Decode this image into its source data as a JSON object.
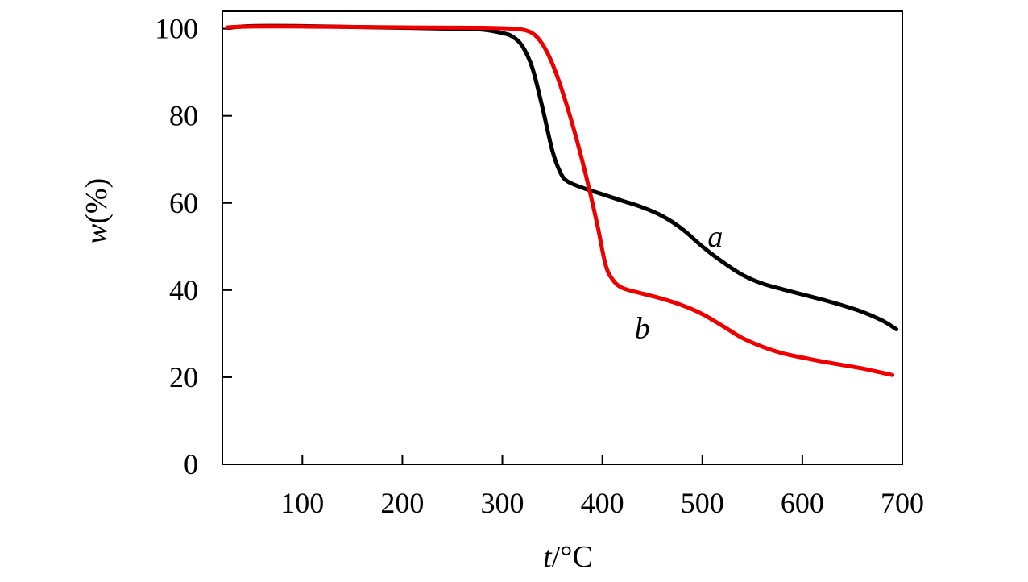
{
  "chart_data": {
    "type": "line",
    "xlabel_var": "t",
    "xlabel_unit": "/°C",
    "ylabel_var": "w",
    "ylabel_unit": "(%)",
    "xlim": [
      20,
      700
    ],
    "ylim": [
      0,
      104
    ],
    "xticks": [
      100,
      200,
      300,
      400,
      500,
      600,
      700
    ],
    "yticks": [
      0,
      20,
      40,
      60,
      80,
      100
    ],
    "grid": false,
    "series": [
      {
        "name": "a",
        "color": "#000000",
        "label_at": [
          513,
          50
        ],
        "points": [
          [
            25,
            100.2
          ],
          [
            50,
            100.6
          ],
          [
            100,
            100.6
          ],
          [
            150,
            100.4
          ],
          [
            200,
            100.2
          ],
          [
            250,
            100.0
          ],
          [
            280,
            99.8
          ],
          [
            300,
            99.0
          ],
          [
            310,
            98.2
          ],
          [
            320,
            96.0
          ],
          [
            330,
            91.0
          ],
          [
            340,
            82.0
          ],
          [
            350,
            72.0
          ],
          [
            358,
            67.0
          ],
          [
            365,
            65.0
          ],
          [
            380,
            63.5
          ],
          [
            400,
            62.0
          ],
          [
            420,
            60.5
          ],
          [
            440,
            59.0
          ],
          [
            460,
            57.0
          ],
          [
            480,
            54.0
          ],
          [
            500,
            50.0
          ],
          [
            520,
            46.5
          ],
          [
            540,
            43.5
          ],
          [
            560,
            41.5
          ],
          [
            580,
            40.2
          ],
          [
            600,
            39.0
          ],
          [
            620,
            37.8
          ],
          [
            640,
            36.5
          ],
          [
            660,
            35.0
          ],
          [
            680,
            33.0
          ],
          [
            694,
            31.0
          ]
        ]
      },
      {
        "name": "b",
        "color": "#ee0000",
        "label_at": [
          440,
          29
        ],
        "points": [
          [
            25,
            100.3
          ],
          [
            50,
            100.5
          ],
          [
            100,
            100.5
          ],
          [
            200,
            100.3
          ],
          [
            280,
            100.2
          ],
          [
            310,
            100.0
          ],
          [
            325,
            99.5
          ],
          [
            335,
            98.0
          ],
          [
            345,
            94.5
          ],
          [
            355,
            89.0
          ],
          [
            365,
            82.0
          ],
          [
            375,
            74.0
          ],
          [
            385,
            65.0
          ],
          [
            395,
            55.0
          ],
          [
            403,
            46.0
          ],
          [
            410,
            42.5
          ],
          [
            420,
            40.5
          ],
          [
            440,
            39.2
          ],
          [
            460,
            38.0
          ],
          [
            480,
            36.5
          ],
          [
            500,
            34.5
          ],
          [
            520,
            31.8
          ],
          [
            540,
            29.0
          ],
          [
            560,
            27.0
          ],
          [
            580,
            25.5
          ],
          [
            600,
            24.5
          ],
          [
            620,
            23.6
          ],
          [
            640,
            22.8
          ],
          [
            660,
            22.0
          ],
          [
            680,
            21.0
          ],
          [
            690,
            20.5
          ]
        ]
      }
    ]
  }
}
